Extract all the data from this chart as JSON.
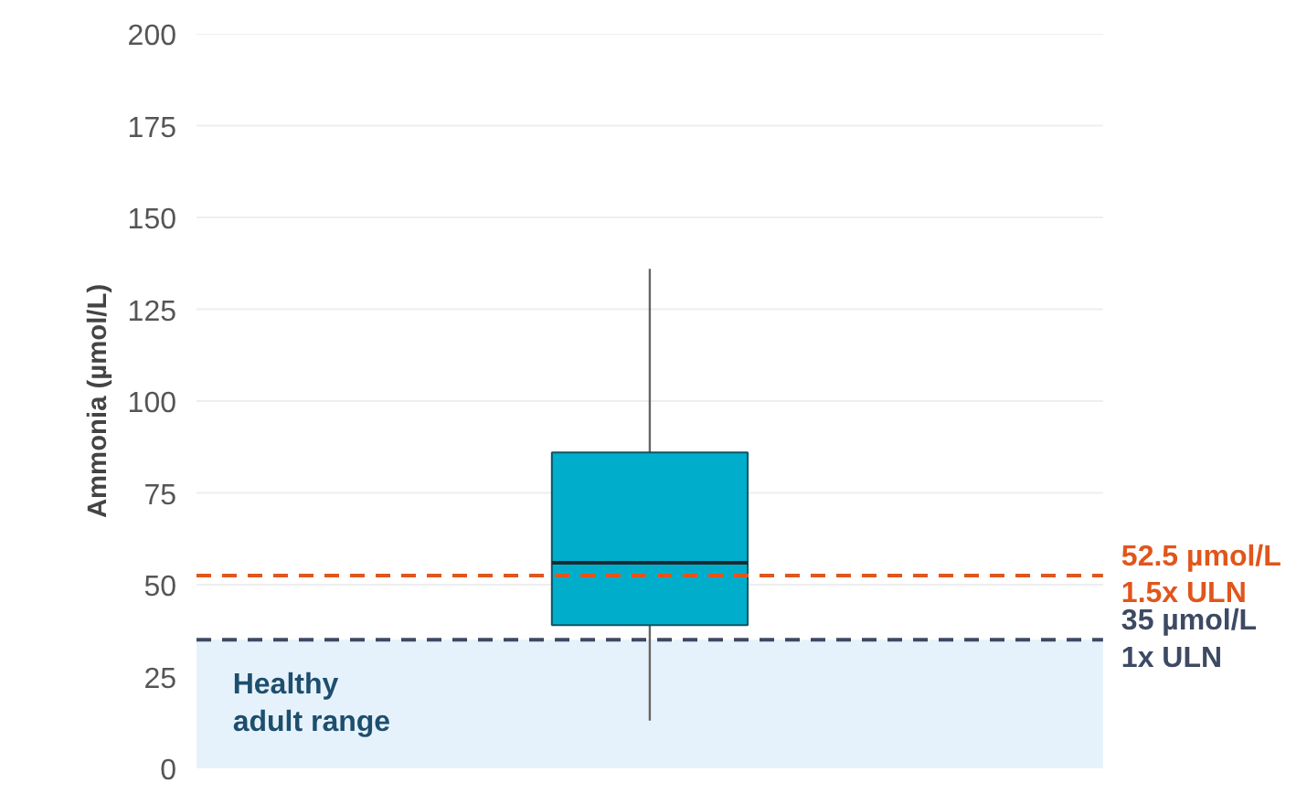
{
  "chart_data": {
    "type": "box",
    "ylabel": "Ammonia (µmol/L)",
    "categories": [
      null
    ],
    "boxes": [
      {
        "low": 13,
        "q1": 39,
        "median": 56,
        "q3": 86,
        "high": 136
      }
    ],
    "color": "#00aecc",
    "ylim": [
      0,
      200
    ],
    "yticks": [
      0,
      25,
      50,
      75,
      100,
      125,
      150,
      175,
      200
    ],
    "grid": "y",
    "tick_labels": "y",
    "ref_lines": [
      {
        "axis": "y",
        "value": 52.5,
        "label": "52.5 µmol/L\n1.5x ULN",
        "color": "#e0561b",
        "line_style": "dashed"
      },
      {
        "axis": "y",
        "value": 35,
        "label": "35 µmol/L\n1x ULN",
        "color": "#3d4a63",
        "line_style": "dashed"
      }
    ],
    "bands": [
      {
        "axis": "y",
        "from": 0,
        "to": 35,
        "label": "Healthy\nadult range",
        "color": "#e6f2fb"
      }
    ]
  }
}
